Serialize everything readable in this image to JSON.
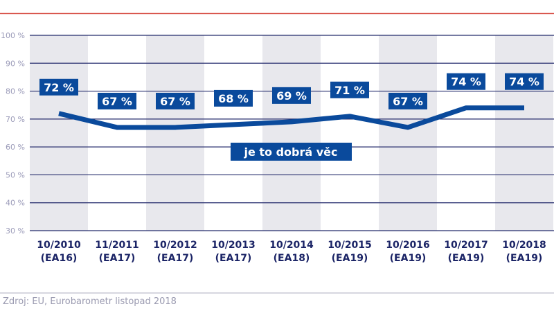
{
  "chart_data": {
    "type": "line",
    "categories": [
      "10/2010\n(EA16)",
      "11/2011\n(EA17)",
      "10/2012\n(EA17)",
      "10/2013\n(EA17)",
      "10/2014\n(EA18)",
      "10/2015\n(EA19)",
      "10/2016\n(EA19)",
      "10/2017\n(EA19)",
      "10/2018\n(EA19)"
    ],
    "series": [
      {
        "name": "je to dobrá věc",
        "values": [
          72,
          67,
          67,
          68,
          69,
          71,
          67,
          74,
          74
        ]
      }
    ],
    "data_labels": [
      "72 %",
      "67 %",
      "67 %",
      "68 %",
      "69 %",
      "71 %",
      "67 %",
      "74 %",
      "74 %"
    ],
    "yticks": [
      "30 %",
      "40 %",
      "50 %",
      "60 %",
      "70 %",
      "80 %",
      "90 %",
      "100 %"
    ],
    "ylim": [
      30,
      100
    ],
    "grid": true,
    "legend_placement": "center",
    "colors": {
      "line": "#0a4a9c",
      "grid": "#232a6b",
      "band": "#e8e8ed",
      "header_rule": "#d9574f",
      "tick_text": "#9a9ab8",
      "category_text": "#1b2466"
    }
  },
  "source": "Zdroj: EU, Eurobarometr listopad 2018"
}
